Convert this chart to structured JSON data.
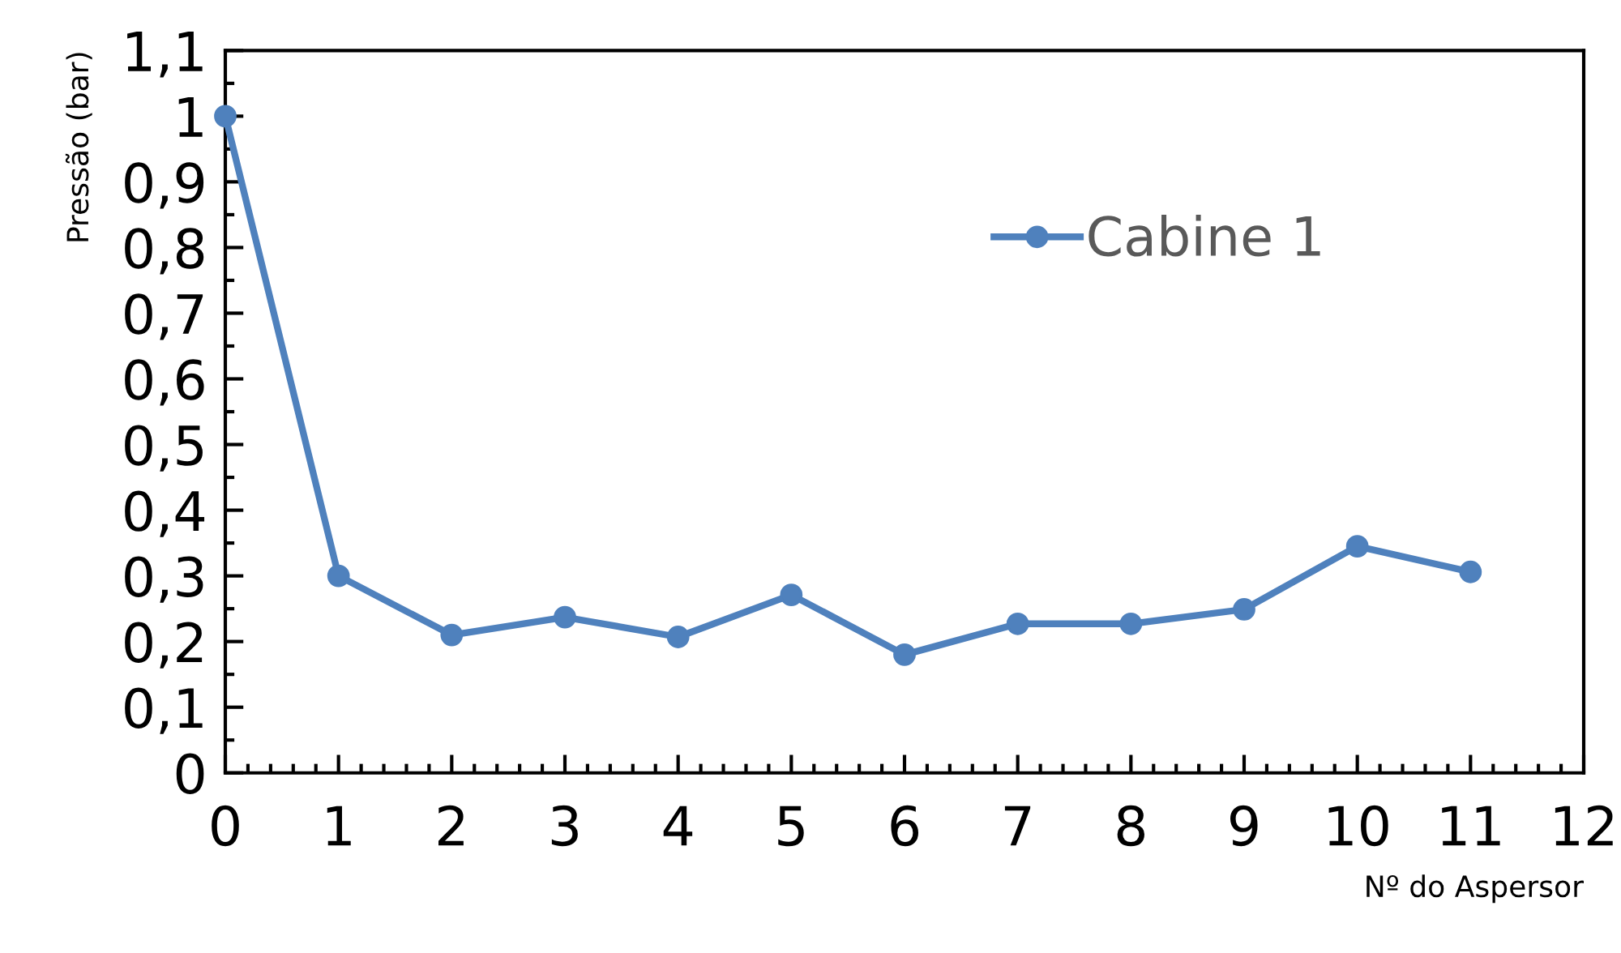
{
  "chart_data": {
    "type": "line",
    "xlabel": "Nº do Aspersor",
    "ylabel": "Pressão (bar)",
    "x": [
      0,
      1,
      2,
      3,
      4,
      5,
      6,
      7,
      8,
      9,
      10,
      11
    ],
    "series": [
      {
        "name": "Cabine 1",
        "color": "#4f81bd",
        "values": [
          1.0,
          0.3,
          0.21,
          0.237,
          0.207,
          0.271,
          0.18,
          0.227,
          0.227,
          0.249,
          0.345,
          0.306
        ]
      }
    ],
    "xlim": [
      0,
      12
    ],
    "xticks": [
      0,
      1,
      2,
      3,
      4,
      5,
      6,
      7,
      8,
      9,
      10,
      11,
      12
    ],
    "ylim": [
      0,
      1.1
    ],
    "yticks": [
      {
        "value": 0,
        "label": "0"
      },
      {
        "value": 0.1,
        "label": "0,1"
      },
      {
        "value": 0.2,
        "label": "0,2"
      },
      {
        "value": 0.3,
        "label": "0,3"
      },
      {
        "value": 0.4,
        "label": "0,4"
      },
      {
        "value": 0.5,
        "label": "0,5"
      },
      {
        "value": 0.6,
        "label": "0,6"
      },
      {
        "value": 0.7,
        "label": "0,7"
      },
      {
        "value": 0.8,
        "label": "0,8"
      },
      {
        "value": 0.9,
        "label": "0,9"
      },
      {
        "value": 1,
        "label": "1"
      },
      {
        "value": 1.1,
        "label": "1,1"
      }
    ],
    "grid": false,
    "legend": "top right",
    "marker": "circle",
    "line_style": "solid"
  }
}
